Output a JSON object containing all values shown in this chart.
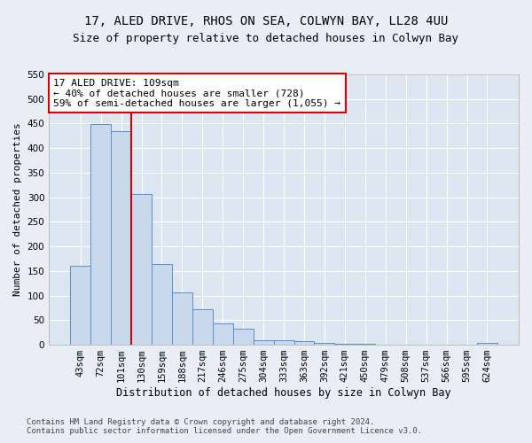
{
  "title1": "17, ALED DRIVE, RHOS ON SEA, COLWYN BAY, LL28 4UU",
  "title2": "Size of property relative to detached houses in Colwyn Bay",
  "xlabel": "Distribution of detached houses by size in Colwyn Bay",
  "ylabel": "Number of detached properties",
  "footer1": "Contains HM Land Registry data © Crown copyright and database right 2024.",
  "footer2": "Contains public sector information licensed under the Open Government Licence v3.0.",
  "annotation_line1": "17 ALED DRIVE: 109sqm",
  "annotation_line2": "← 40% of detached houses are smaller (728)",
  "annotation_line3": "59% of semi-detached houses are larger (1,055) →",
  "bar_color": "#c9d9ed",
  "bar_edge_color": "#5b8fc9",
  "vline_color": "#cc0000",
  "vline_x_idx": 2,
  "categories": [
    "43sqm",
    "72sqm",
    "101sqm",
    "130sqm",
    "159sqm",
    "188sqm",
    "217sqm",
    "246sqm",
    "275sqm",
    "304sqm",
    "333sqm",
    "363sqm",
    "392sqm",
    "421sqm",
    "450sqm",
    "479sqm",
    "508sqm",
    "537sqm",
    "566sqm",
    "595sqm",
    "624sqm"
  ],
  "values": [
    161,
    449,
    435,
    307,
    165,
    106,
    73,
    44,
    32,
    10,
    9,
    8,
    3,
    2,
    2,
    1,
    1,
    0,
    0,
    0,
    4
  ],
  "ylim": [
    0,
    550
  ],
  "yticks": [
    0,
    50,
    100,
    150,
    200,
    250,
    300,
    350,
    400,
    450,
    500,
    550
  ],
  "bg_color": "#e8eef5",
  "plot_bg_color": "#dce6f1",
  "grid_color": "#ffffff",
  "title1_fontsize": 10,
  "title2_fontsize": 9,
  "xlabel_fontsize": 8.5,
  "ylabel_fontsize": 8,
  "tick_fontsize": 7.5,
  "annotation_fontsize": 8,
  "footer_fontsize": 6.5
}
